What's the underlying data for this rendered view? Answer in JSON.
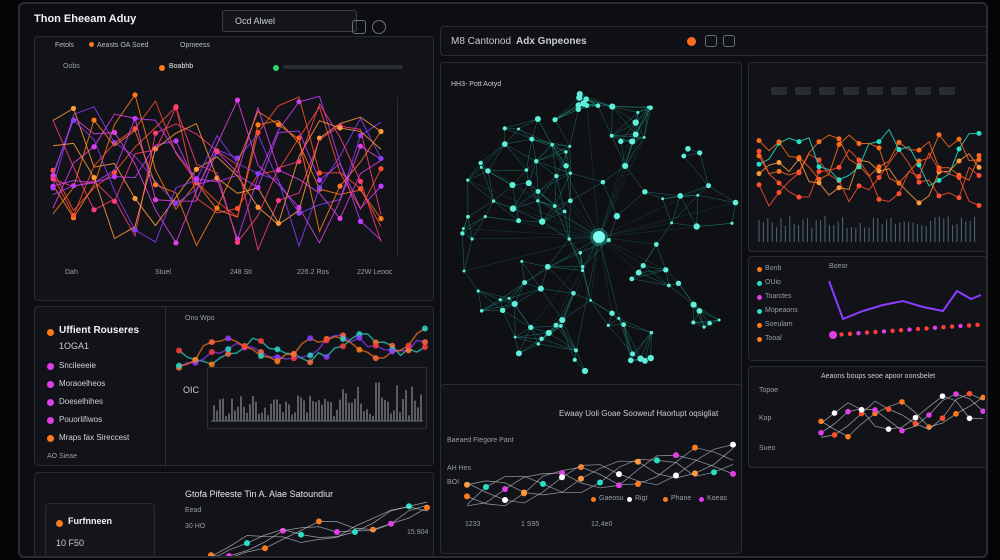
{
  "header": {
    "app_title": "Thon Eheeam Aduy",
    "search_value": "Ocd Alwel",
    "tabs": [
      "Fetols",
      "Aeasts OA Soed",
      "Opmeess"
    ],
    "center_title": "M8 Cantonod",
    "center_subtitle": "Adx Gnpeones"
  },
  "left_top": {
    "chip_left": "Oobs",
    "chip_mid": "Boabhb",
    "footer_labels": [
      "Dah",
      "Stuel",
      "248 Sti",
      "226.2 Ros",
      "22W Leooc"
    ]
  },
  "left_mid": {
    "title": "Uffient Rouseres",
    "subtitle": "1OGA1",
    "legend": [
      {
        "label": "Sncileeeie",
        "color": "#e23ee8"
      },
      {
        "label": "Moraoelheos",
        "color": "#e23ee8"
      },
      {
        "label": "Doeselhihes",
        "color": "#e23ee8"
      },
      {
        "label": "Pouorlifiwos",
        "color": "#e23ee8"
      },
      {
        "label": "Mraps fax Sireccest",
        "color": "#ff7a1a"
      }
    ],
    "footer": "AO Sieae",
    "chart_label": "Ono Wpo",
    "axis_label": "OIC"
  },
  "left_bottom": {
    "title": "Gtofa Pifeeste Tin A. Alae Satoundiur",
    "sub1": "Eead",
    "sub2": "30 HO",
    "value_right": "15.904",
    "card_title": "Furfnneen",
    "card_value": "10 F50"
  },
  "network": {
    "caption": "HH3- Pott Aotyd"
  },
  "center_bottom": {
    "title": "Ewaay Uoli Goae Sooweuf Haorlupt oqsigliat",
    "sub": "Baeaed Ftegore Pant",
    "label1": "AH Hes",
    "label2": "BOI",
    "value1": "1233",
    "value2": "1 S95",
    "value3": "12,4e0",
    "legend": [
      "Gaeosu",
      "Rigt",
      "Phane",
      "Koeas"
    ]
  },
  "right": {
    "small_labels": [
      "Bonb",
      "OUio",
      "Toarctes",
      "Mopeaons",
      "Soeulam",
      "Tooal"
    ],
    "chart_title": "Boeor",
    "bottom_title": "Aeaons boups seoe apoor oonsbelet",
    "bottom_labels": [
      "Topoe",
      "Kop",
      "Sueo"
    ]
  },
  "colors": {
    "accent_cyan": "#28e0c8",
    "accent_orange": "#ff6a1a",
    "accent_magenta": "#e23ee8",
    "accent_purple": "#8b3cff"
  }
}
